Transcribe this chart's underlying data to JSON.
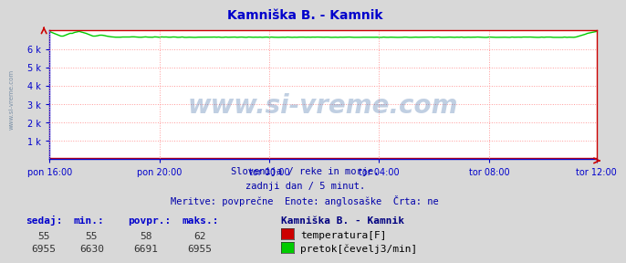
{
  "title": "Kamniška B. - Kamnik",
  "title_color": "#0000cc",
  "bg_color": "#d8d8d8",
  "plot_bg_color": "#ffffff",
  "grid_color": "#ff9999",
  "grid_linestyle": ":",
  "xlabel_ticks": [
    "pon 16:00",
    "pon 20:00",
    "tor 00:00",
    "tor 04:00",
    "tor 08:00",
    "tor 12:00"
  ],
  "xlabel_tick_positions": [
    0,
    48,
    96,
    144,
    192,
    239
  ],
  "ylabel_ticks": [
    "1 k",
    "2 k",
    "3 k",
    "4 k",
    "5 k",
    "6 k"
  ],
  "ylabel_tick_values": [
    1000,
    2000,
    3000,
    4000,
    5000,
    6000
  ],
  "ylim": [
    0,
    7000
  ],
  "xlim": [
    0,
    239
  ],
  "n_points": 240,
  "temp_color": "#cc0000",
  "flow_color": "#00cc00",
  "axis_color_blue": "#0000cc",
  "axis_color_red": "#cc0000",
  "tick_color": "#0000cc",
  "watermark": "www.si-vreme.com",
  "watermark_color": "#3060a0",
  "watermark_alpha": 0.3,
  "side_text": "www.si-vreme.com",
  "subtitle_lines": [
    "Slovenija / reke in morje.",
    "zadnji dan / 5 minut.",
    "Meritve: povprečne  Enote: anglosaške  Črta: ne"
  ],
  "subtitle_color": "#0000aa",
  "subtitle_fontsize": 7.5,
  "legend_title": "Kamniška B. - Kamnik",
  "legend_title_color": "#000080",
  "legend_label_temp": "temperatura[F]",
  "legend_label_flow": "pretok[čevelj3/min]",
  "stats_headers": [
    "sedaj:",
    "min.:",
    "povpr.:",
    "maks.:"
  ],
  "stats_temp": [
    "55",
    "55",
    "58",
    "62"
  ],
  "stats_flow": [
    "6955",
    "6630",
    "6691",
    "6955"
  ],
  "stats_color": "#0000cc",
  "stats_values_color": "#333333",
  "stats_fontsize": 8
}
